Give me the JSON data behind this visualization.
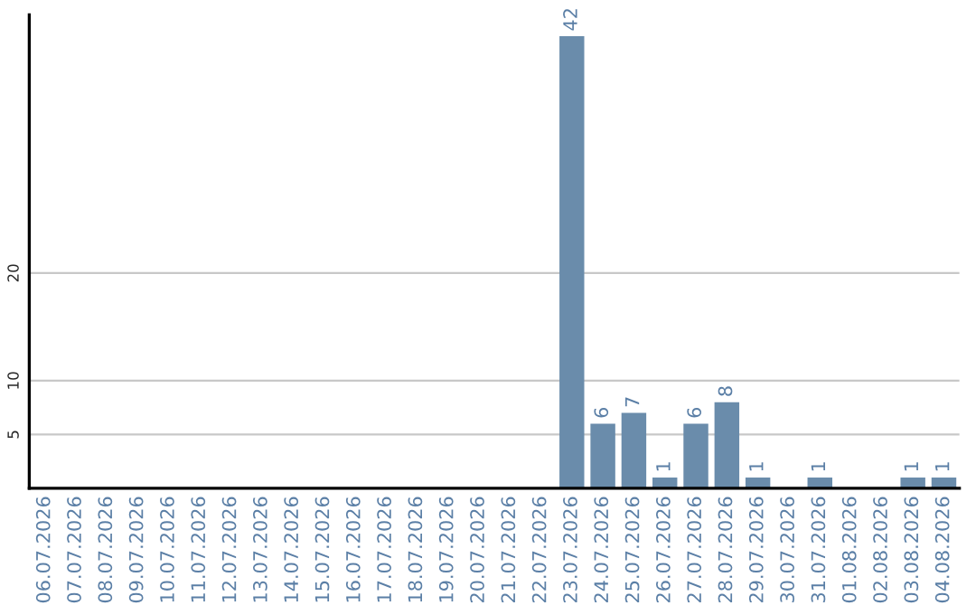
{
  "chart_data": {
    "type": "bar",
    "categories": [
      "06.07.2026",
      "07.07.2026",
      "08.07.2026",
      "09.07.2026",
      "10.07.2026",
      "11.07.2026",
      "12.07.2026",
      "13.07.2026",
      "14.07.2026",
      "15.07.2026",
      "16.07.2026",
      "17.07.2026",
      "18.07.2026",
      "19.07.2026",
      "20.07.2026",
      "21.07.2026",
      "22.07.2026",
      "23.07.2026",
      "24.07.2026",
      "25.07.2026",
      "26.07.2026",
      "27.07.2026",
      "28.07.2026",
      "29.07.2026",
      "30.07.2026",
      "31.07.2026",
      "01.08.2026",
      "02.08.2026",
      "03.08.2026",
      "04.08.2026"
    ],
    "values": [
      null,
      null,
      null,
      null,
      null,
      null,
      null,
      null,
      null,
      null,
      null,
      null,
      null,
      null,
      null,
      null,
      null,
      42,
      6,
      7,
      1,
      6,
      8,
      1,
      null,
      1,
      null,
      null,
      1,
      1
    ],
    "value_labels": [
      null,
      null,
      null,
      null,
      null,
      null,
      null,
      null,
      null,
      null,
      null,
      null,
      null,
      null,
      null,
      null,
      null,
      "42",
      "6",
      "7",
      "1",
      "6",
      "8",
      "1",
      null,
      "1",
      null,
      null,
      "1",
      "1"
    ],
    "color": "#6a8cab",
    "ylim": [
      0,
      44
    ],
    "yticks": [
      5,
      10,
      20
    ],
    "grid": "y"
  }
}
